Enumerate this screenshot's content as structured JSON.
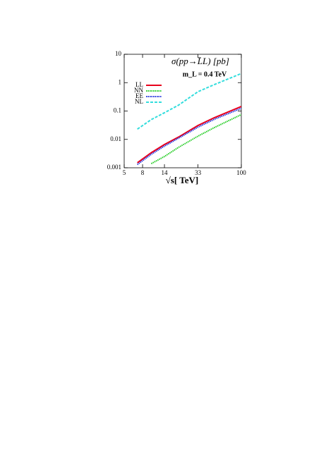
{
  "chart_data": {
    "type": "line",
    "title": "σ(pp→L̄L) [pb]",
    "subtitle": "m_L = 0.4 TeV",
    "x_label": "√s[ TeV]",
    "x": [
      7,
      10,
      14,
      20,
      33,
      50,
      100
    ],
    "series": [
      {
        "name": "LL",
        "color": "#e8001c",
        "dash": "solid",
        "values": [
          0.0015,
          0.0034,
          0.0066,
          0.012,
          0.031,
          0.058,
          0.145
        ]
      },
      {
        "name": "NN",
        "color": "#22cc22",
        "dash": "dotted",
        "values": [
          null,
          0.0014,
          0.0025,
          0.0052,
          0.013,
          0.026,
          0.075
        ]
      },
      {
        "name": "EE",
        "color": "#2233dd",
        "dash": "dotted",
        "values": [
          0.0013,
          0.003,
          0.0058,
          0.011,
          0.027,
          0.051,
          0.125
        ]
      },
      {
        "name": "NL",
        "color": "#33dddd",
        "dash": "dashed",
        "values": [
          0.023,
          0.05,
          0.087,
          0.16,
          0.48,
          0.85,
          2.1
        ]
      }
    ],
    "xlim": [
      5,
      100
    ],
    "xticks": [
      5,
      8,
      14,
      33,
      100
    ],
    "ylim": [
      0.001,
      10
    ],
    "yticks": [
      0.001,
      0.01,
      0.1,
      1,
      10
    ],
    "xscale": "log",
    "yscale": "log",
    "grid": false,
    "legend": "upper left"
  }
}
